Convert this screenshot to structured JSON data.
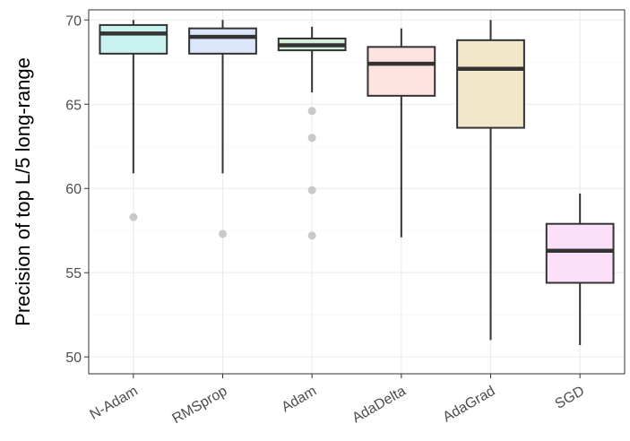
{
  "chart_data": {
    "type": "boxplot",
    "title": "",
    "xlabel": "",
    "ylabel": "Precision of top L/5 long-range",
    "ylim": [
      49,
      70.6
    ],
    "yticks": [
      50,
      55,
      60,
      65,
      70
    ],
    "grid": true,
    "legend": "none",
    "categories": [
      "N-Adam",
      "RMSprop",
      "Adam",
      "AdaDelta",
      "AdaGrad",
      "SGD"
    ],
    "boxes": [
      {
        "name": "N-Adam",
        "whisker_low": 60.9,
        "q1": 68.0,
        "median": 69.2,
        "q3": 69.7,
        "whisker_high": 70.0,
        "outliers": [
          58.3
        ],
        "fill": "#c9f2f0"
      },
      {
        "name": "RMSprop",
        "whisker_low": 60.9,
        "q1": 68.0,
        "median": 69.0,
        "q3": 69.5,
        "whisker_high": 70.0,
        "outliers": [
          57.3
        ],
        "fill": "#dce6fb"
      },
      {
        "name": "Adam",
        "whisker_low": 65.7,
        "q1": 68.2,
        "median": 68.5,
        "q3": 68.9,
        "whisker_high": 69.6,
        "outliers": [
          64.6,
          63.0,
          59.9,
          57.2
        ],
        "fill": "#d4efd9"
      },
      {
        "name": "AdaDelta",
        "whisker_low": 57.1,
        "q1": 65.5,
        "median": 67.4,
        "q3": 68.4,
        "whisker_high": 69.5,
        "outliers": [],
        "fill": "#fde2e0"
      },
      {
        "name": "AdaGrad",
        "whisker_low": 51.0,
        "q1": 63.6,
        "median": 67.1,
        "q3": 68.8,
        "whisker_high": 70.0,
        "outliers": [],
        "fill": "#f0e8c8"
      },
      {
        "name": "SGD",
        "whisker_low": 50.7,
        "q1": 54.4,
        "median": 56.3,
        "q3": 57.9,
        "whisker_high": 59.7,
        "outliers": [],
        "fill": "#fce0fa"
      }
    ],
    "colors": {
      "panel_border": "#333333",
      "grid_major": "#ebebeb",
      "grid_minor": "#f5f5f5",
      "box_stroke": "#333333",
      "outlier": "#bfbfbf"
    }
  }
}
